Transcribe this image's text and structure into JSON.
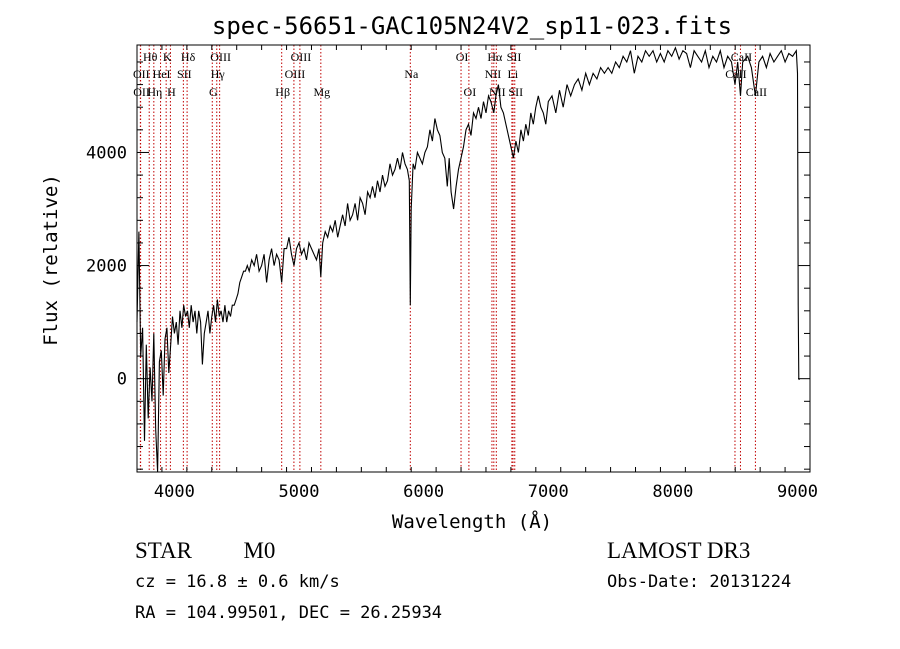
{
  "chart_data": {
    "type": "line",
    "title": "spec-56651-GAC105N24V2_sp11-023.fits",
    "xlabel": "Wavelength (Å)",
    "ylabel": "Flux (relative)",
    "xlim": [
      3700,
      9100
    ],
    "ylim": [
      -1650,
      5900
    ],
    "x_ticks": [
      4000,
      5000,
      6000,
      7000,
      8000,
      9000
    ],
    "x_tick_labels": [
      "4000",
      "5000",
      "6000",
      "7000",
      "8000",
      "9000"
    ],
    "y_ticks": [
      0,
      2000,
      4000
    ],
    "y_tick_labels": [
      "0",
      "2000",
      "4000"
    ],
    "series": [
      {
        "name": "flux",
        "points": [
          [
            3700,
            1000
          ],
          [
            3715,
            2600
          ],
          [
            3730,
            400
          ],
          [
            3745,
            900
          ],
          [
            3760,
            -1100
          ],
          [
            3775,
            600
          ],
          [
            3790,
            -700
          ],
          [
            3805,
            200
          ],
          [
            3820,
            -400
          ],
          [
            3835,
            800
          ],
          [
            3850,
            -900
          ],
          [
            3865,
            -1650
          ],
          [
            3880,
            300
          ],
          [
            3895,
            500
          ],
          [
            3910,
            -300
          ],
          [
            3925,
            700
          ],
          [
            3940,
            900
          ],
          [
            3955,
            100
          ],
          [
            3970,
            600
          ],
          [
            3985,
            1100
          ],
          [
            4000,
            800
          ],
          [
            4015,
            1000
          ],
          [
            4030,
            600
          ],
          [
            4045,
            1200
          ],
          [
            4060,
            900
          ],
          [
            4075,
            1300
          ],
          [
            4090,
            1100
          ],
          [
            4105,
            1200
          ],
          [
            4120,
            900
          ],
          [
            4135,
            1300
          ],
          [
            4150,
            1000
          ],
          [
            4165,
            1200
          ],
          [
            4180,
            800
          ],
          [
            4195,
            1200
          ],
          [
            4210,
            1000
          ],
          [
            4225,
            250
          ],
          [
            4240,
            800
          ],
          [
            4255,
            1000
          ],
          [
            4270,
            1200
          ],
          [
            4285,
            800
          ],
          [
            4300,
            1100
          ],
          [
            4315,
            1300
          ],
          [
            4330,
            1000
          ],
          [
            4345,
            1400
          ],
          [
            4360,
            1100
          ],
          [
            4375,
            1200
          ],
          [
            4390,
            1000
          ],
          [
            4405,
            1300
          ],
          [
            4420,
            1000
          ],
          [
            4435,
            1200
          ],
          [
            4450,
            1100
          ],
          [
            4465,
            1300
          ],
          [
            4480,
            1300
          ],
          [
            4495,
            1400
          ],
          [
            4510,
            1500
          ],
          [
            4525,
            1700
          ],
          [
            4540,
            1800
          ],
          [
            4555,
            1900
          ],
          [
            4570,
            1900
          ],
          [
            4585,
            2000
          ],
          [
            4600,
            1900
          ],
          [
            4620,
            2100
          ],
          [
            4640,
            2000
          ],
          [
            4660,
            2200
          ],
          [
            4680,
            1900
          ],
          [
            4700,
            2000
          ],
          [
            4720,
            2200
          ],
          [
            4740,
            1700
          ],
          [
            4760,
            2100
          ],
          [
            4780,
            2300
          ],
          [
            4800,
            2000
          ],
          [
            4820,
            2200
          ],
          [
            4840,
            2100
          ],
          [
            4861,
            1700
          ],
          [
            4880,
            2300
          ],
          [
            4900,
            2300
          ],
          [
            4920,
            2500
          ],
          [
            4940,
            2200
          ],
          [
            4960,
            2000
          ],
          [
            4980,
            2300
          ],
          [
            5000,
            2400
          ],
          [
            5020,
            2200
          ],
          [
            5040,
            2300
          ],
          [
            5060,
            2100
          ],
          [
            5080,
            2400
          ],
          [
            5100,
            2300
          ],
          [
            5120,
            2200
          ],
          [
            5140,
            2100
          ],
          [
            5160,
            2300
          ],
          [
            5175,
            1800
          ],
          [
            5190,
            2400
          ],
          [
            5210,
            2600
          ],
          [
            5230,
            2500
          ],
          [
            5250,
            2700
          ],
          [
            5270,
            2600
          ],
          [
            5290,
            2800
          ],
          [
            5310,
            2500
          ],
          [
            5330,
            2700
          ],
          [
            5350,
            2900
          ],
          [
            5370,
            2700
          ],
          [
            5390,
            3100
          ],
          [
            5410,
            2800
          ],
          [
            5430,
            2900
          ],
          [
            5450,
            3100
          ],
          [
            5470,
            2800
          ],
          [
            5490,
            3200
          ],
          [
            5510,
            3100
          ],
          [
            5530,
            2900
          ],
          [
            5550,
            3300
          ],
          [
            5570,
            3200
          ],
          [
            5590,
            3400
          ],
          [
            5610,
            3200
          ],
          [
            5630,
            3500
          ],
          [
            5650,
            3300
          ],
          [
            5670,
            3600
          ],
          [
            5690,
            3400
          ],
          [
            5710,
            3500
          ],
          [
            5730,
            3800
          ],
          [
            5750,
            3600
          ],
          [
            5770,
            3700
          ],
          [
            5790,
            3900
          ],
          [
            5810,
            3700
          ],
          [
            5830,
            4000
          ],
          [
            5850,
            3800
          ],
          [
            5870,
            3700
          ],
          [
            5885,
            3500
          ],
          [
            5893,
            1300
          ],
          [
            5900,
            3000
          ],
          [
            5915,
            3800
          ],
          [
            5930,
            3700
          ],
          [
            5950,
            4000
          ],
          [
            5970,
            3900
          ],
          [
            5990,
            3800
          ],
          [
            6010,
            4000
          ],
          [
            6030,
            4100
          ],
          [
            6050,
            4400
          ],
          [
            6070,
            4200
          ],
          [
            6090,
            4600
          ],
          [
            6110,
            4400
          ],
          [
            6130,
            4300
          ],
          [
            6150,
            4000
          ],
          [
            6170,
            3900
          ],
          [
            6190,
            3400
          ],
          [
            6205,
            3900
          ],
          [
            6220,
            3300
          ],
          [
            6240,
            3000
          ],
          [
            6260,
            3400
          ],
          [
            6280,
            3700
          ],
          [
            6300,
            3900
          ],
          [
            6320,
            4100
          ],
          [
            6340,
            4400
          ],
          [
            6360,
            4500
          ],
          [
            6380,
            4300
          ],
          [
            6400,
            4700
          ],
          [
            6420,
            4600
          ],
          [
            6440,
            4800
          ],
          [
            6460,
            4600
          ],
          [
            6480,
            4900
          ],
          [
            6500,
            4700
          ],
          [
            6520,
            5000
          ],
          [
            6540,
            4900
          ],
          [
            6563,
            4700
          ],
          [
            6580,
            5000
          ],
          [
            6600,
            5200
          ],
          [
            6620,
            4800
          ],
          [
            6640,
            4700
          ],
          [
            6660,
            4500
          ],
          [
            6680,
            4300
          ],
          [
            6700,
            4100
          ],
          [
            6720,
            3900
          ],
          [
            6740,
            4200
          ],
          [
            6760,
            4000
          ],
          [
            6780,
            4400
          ],
          [
            6800,
            4200
          ],
          [
            6820,
            4500
          ],
          [
            6840,
            4300
          ],
          [
            6860,
            4700
          ],
          [
            6880,
            4500
          ],
          [
            6900,
            4800
          ],
          [
            6920,
            5000
          ],
          [
            6940,
            4800
          ],
          [
            6960,
            4700
          ],
          [
            6980,
            4500
          ],
          [
            7000,
            4900
          ],
          [
            7030,
            5000
          ],
          [
            7060,
            4700
          ],
          [
            7090,
            5100
          ],
          [
            7120,
            4800
          ],
          [
            7150,
            5200
          ],
          [
            7180,
            5000
          ],
          [
            7210,
            5200
          ],
          [
            7240,
            5300
          ],
          [
            7270,
            5100
          ],
          [
            7300,
            5400
          ],
          [
            7330,
            5200
          ],
          [
            7360,
            5400
          ],
          [
            7390,
            5300
          ],
          [
            7420,
            5500
          ],
          [
            7450,
            5400
          ],
          [
            7480,
            5500
          ],
          [
            7510,
            5400
          ],
          [
            7540,
            5600
          ],
          [
            7570,
            5500
          ],
          [
            7600,
            5700
          ],
          [
            7630,
            5600
          ],
          [
            7660,
            5800
          ],
          [
            7690,
            5400
          ],
          [
            7720,
            5700
          ],
          [
            7750,
            5600
          ],
          [
            7780,
            5800
          ],
          [
            7810,
            5700
          ],
          [
            7840,
            5800
          ],
          [
            7870,
            5600
          ],
          [
            7900,
            5750
          ],
          [
            7930,
            5600
          ],
          [
            7960,
            5800
          ],
          [
            7990,
            5700
          ],
          [
            8020,
            5850
          ],
          [
            8050,
            5650
          ],
          [
            8080,
            5800
          ],
          [
            8110,
            5750
          ],
          [
            8140,
            5500
          ],
          [
            8170,
            5800
          ],
          [
            8200,
            5700
          ],
          [
            8230,
            5600
          ],
          [
            8260,
            5800
          ],
          [
            8290,
            5500
          ],
          [
            8320,
            5700
          ],
          [
            8350,
            5600
          ],
          [
            8380,
            5800
          ],
          [
            8410,
            5500
          ],
          [
            8440,
            5700
          ],
          [
            8470,
            5600
          ],
          [
            8498,
            5200
          ],
          [
            8520,
            5600
          ],
          [
            8542,
            5000
          ],
          [
            8560,
            5600
          ],
          [
            8600,
            5700
          ],
          [
            8630,
            5500
          ],
          [
            8662,
            5000
          ],
          [
            8690,
            5600
          ],
          [
            8720,
            5700
          ],
          [
            8750,
            5500
          ],
          [
            8780,
            5750
          ],
          [
            8810,
            5600
          ],
          [
            8840,
            5700
          ],
          [
            8870,
            5800
          ],
          [
            8900,
            5600
          ],
          [
            8930,
            5750
          ],
          [
            8960,
            5700
          ],
          [
            8990,
            5800
          ],
          [
            9000,
            5400
          ],
          [
            9005,
            1300
          ],
          [
            9010,
            0
          ],
          [
            9015,
            -20
          ]
        ]
      }
    ],
    "line_markers": [
      {
        "label": "Hθ",
        "wavelength": 3798,
        "row": 0
      },
      {
        "label": "K",
        "wavelength": 3934,
        "row": 0
      },
      {
        "label": "Hδ",
        "wavelength": 4102,
        "row": 0
      },
      {
        "label": "OIII",
        "wavelength": 4363,
        "row": 0
      },
      {
        "label": "OIII",
        "wavelength": 5007,
        "row": 0
      },
      {
        "label": "OI",
        "wavelength": 6300,
        "row": 0
      },
      {
        "label": "Hα",
        "wavelength": 6563,
        "row": 0
      },
      {
        "label": "SII",
        "wavelength": 6717,
        "row": 0
      },
      {
        "label": "CaII",
        "wavelength": 8542,
        "row": 0
      },
      {
        "label": "OII",
        "wavelength": 3727,
        "row": 1
      },
      {
        "label": "HeI",
        "wavelength": 3889,
        "row": 1
      },
      {
        "label": "SII",
        "wavelength": 4072,
        "row": 1
      },
      {
        "label": "Hγ",
        "wavelength": 4340,
        "row": 1
      },
      {
        "label": "OIII",
        "wavelength": 4959,
        "row": 1
      },
      {
        "label": "Na",
        "wavelength": 5893,
        "row": 1
      },
      {
        "label": "NII",
        "wavelength": 6548,
        "row": 1
      },
      {
        "label": "Li",
        "wavelength": 6708,
        "row": 1
      },
      {
        "label": "CaII",
        "wavelength": 8498,
        "row": 1
      },
      {
        "label": "OII",
        "wavelength": 3729,
        "row": 2
      },
      {
        "label": "Hη",
        "wavelength": 3835,
        "row": 2
      },
      {
        "label": "H",
        "wavelength": 3968,
        "row": 2
      },
      {
        "label": "G",
        "wavelength": 4304,
        "row": 2
      },
      {
        "label": "Hβ",
        "wavelength": 4861,
        "row": 2
      },
      {
        "label": "Mg",
        "wavelength": 5175,
        "row": 2
      },
      {
        "label": "OI",
        "wavelength": 6363,
        "row": 2
      },
      {
        "label": "NII",
        "wavelength": 6583,
        "row": 2
      },
      {
        "label": "SII",
        "wavelength": 6731,
        "row": 2
      },
      {
        "label": "CaII",
        "wavelength": 8662,
        "row": 2
      }
    ],
    "marker_color": "#c00000",
    "line_color": "#000000"
  },
  "footer": {
    "classification": "STAR",
    "subclass": "M0",
    "redshift_line": "cz = 16.8 ± 0.6 km/s",
    "coords_line": "RA = 104.99501, DEC =  26.25934",
    "survey": "LAMOST DR3",
    "obs_date": "Obs-Date: 20131224"
  }
}
